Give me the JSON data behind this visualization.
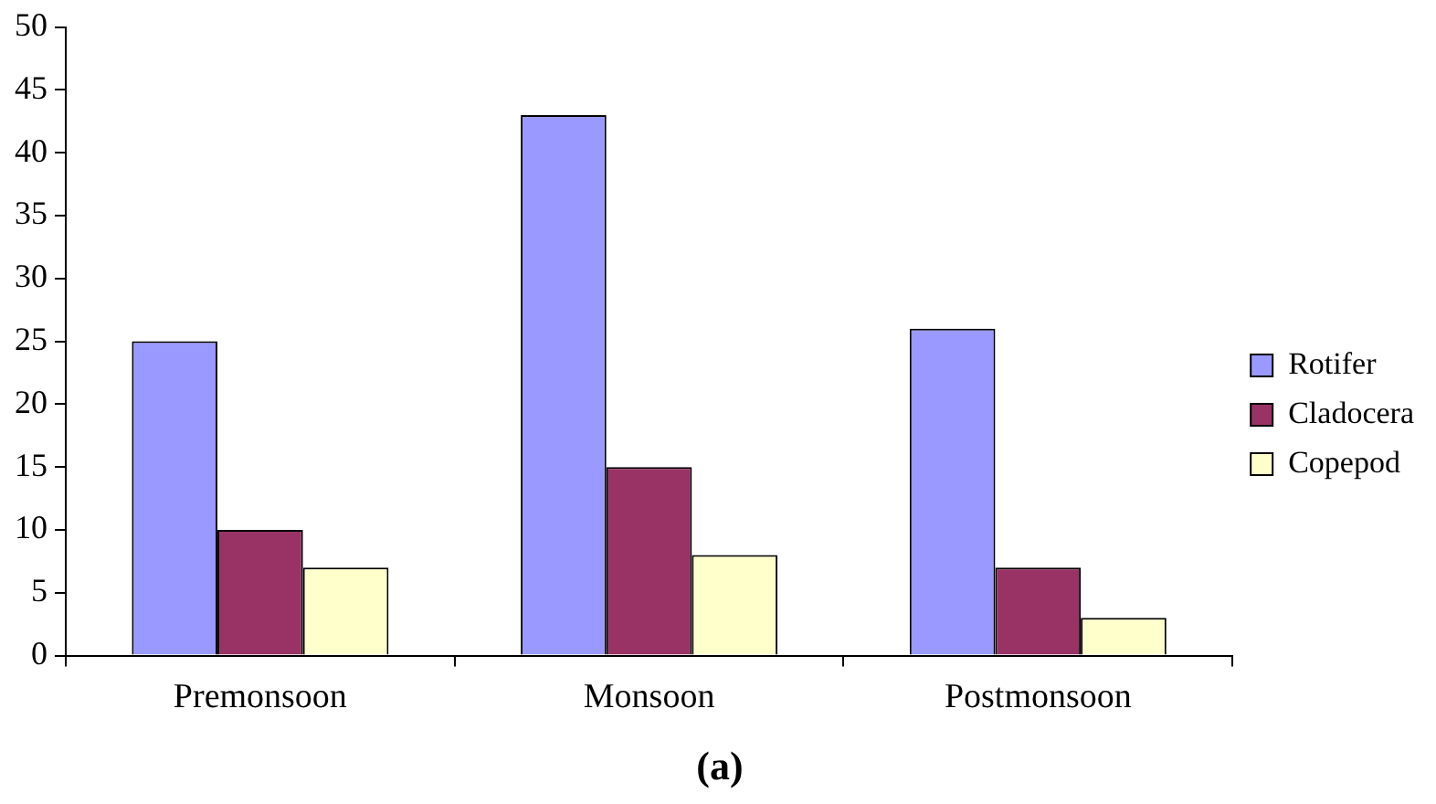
{
  "chart_data": {
    "type": "bar",
    "title": "(a)",
    "categories": [
      "Premonsoon",
      "Monsoon",
      "Postmonsoon"
    ],
    "series": [
      {
        "name": "Rotifer",
        "color": "#9999ff",
        "values": [
          25,
          43,
          26
        ]
      },
      {
        "name": "Cladocera",
        "color": "#993366",
        "values": [
          10,
          15,
          7
        ]
      },
      {
        "name": "Copepod",
        "color": "#ffffcc",
        "values": [
          7,
          8,
          3
        ]
      }
    ],
    "ylim": [
      0,
      50
    ],
    "yticks": [
      0,
      5,
      10,
      15,
      20,
      25,
      30,
      35,
      40,
      45,
      50
    ],
    "grid": false,
    "legend": "right"
  }
}
